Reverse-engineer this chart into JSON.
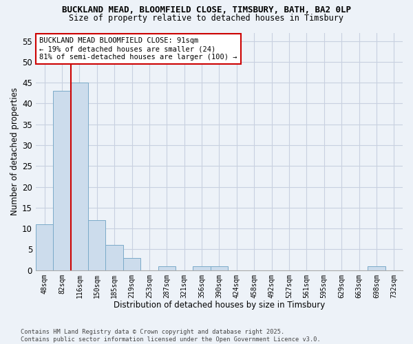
{
  "title_line1": "BUCKLAND MEAD, BLOOMFIELD CLOSE, TIMSBURY, BATH, BA2 0LP",
  "title_line2": "Size of property relative to detached houses in Timsbury",
  "xlabel": "Distribution of detached houses by size in Timsbury",
  "ylabel": "Number of detached properties",
  "categories": [
    "48sqm",
    "82sqm",
    "116sqm",
    "150sqm",
    "185sqm",
    "219sqm",
    "253sqm",
    "287sqm",
    "321sqm",
    "356sqm",
    "390sqm",
    "424sqm",
    "458sqm",
    "492sqm",
    "527sqm",
    "561sqm",
    "595sqm",
    "629sqm",
    "663sqm",
    "698sqm",
    "732sqm"
  ],
  "values": [
    11,
    43,
    45,
    12,
    6,
    3,
    0,
    1,
    0,
    1,
    1,
    0,
    0,
    0,
    0,
    0,
    0,
    0,
    0,
    1,
    0
  ],
  "bar_color": "#ccdcec",
  "bar_edge_color": "#7aaac8",
  "grid_color": "#c8d0e0",
  "background_color": "#edf2f8",
  "annotation_text": "BUCKLAND MEAD BLOOMFIELD CLOSE: 91sqm\n← 19% of detached houses are smaller (24)\n81% of semi-detached houses are larger (100) →",
  "annotation_box_color": "#ffffff",
  "annotation_box_edge_color": "#cc0000",
  "red_line_color": "#cc0000",
  "ylim": [
    0,
    57
  ],
  "yticks": [
    0,
    5,
    10,
    15,
    20,
    25,
    30,
    35,
    40,
    45,
    50,
    55
  ],
  "footer_line1": "Contains HM Land Registry data © Crown copyright and database right 2025.",
  "footer_line2": "Contains public sector information licensed under the Open Government Licence v3.0."
}
